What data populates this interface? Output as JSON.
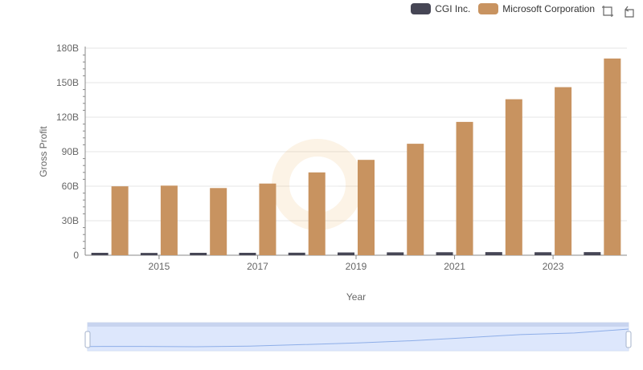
{
  "legend": {
    "items": [
      {
        "label": "CGI Inc.",
        "color": "#464655"
      },
      {
        "label": "Microsoft Corporation",
        "color": "#c89360"
      }
    ]
  },
  "toolbox": {
    "icons": [
      "zoom-icon",
      "restore-icon"
    ]
  },
  "chart_data": {
    "type": "bar",
    "title": "",
    "xlabel": "Year",
    "ylabel": "Gross Profit",
    "categories": [
      "2014",
      "2015",
      "2016",
      "2017",
      "2018",
      "2019",
      "2020",
      "2021",
      "2022",
      "2023",
      "2024"
    ],
    "x_tick_labels": [
      "2015",
      "2017",
      "2019",
      "2021",
      "2023"
    ],
    "y_tick_labels": [
      "0",
      "30B",
      "60B",
      "90B",
      "120B",
      "150B",
      "180B"
    ],
    "ylim": [
      0,
      180
    ],
    "y_unit": "B",
    "grid": true,
    "legend_position": "top-right",
    "series": [
      {
        "name": "CGI Inc.",
        "color": "#464655",
        "values": [
          2.1,
          2.0,
          2.1,
          2.1,
          2.2,
          2.4,
          2.5,
          2.6,
          2.7,
          2.6,
          2.7
        ]
      },
      {
        "name": "Microsoft Corporation",
        "color": "#c89360",
        "values": [
          59.9,
          60.5,
          58.4,
          62.3,
          72.0,
          82.9,
          96.9,
          115.9,
          135.6,
          146.1,
          171.0
        ]
      }
    ]
  },
  "dataZoom": {
    "range_start_pct": 0,
    "range_end_pct": 100,
    "preview_fill": "#d4e1fb",
    "preview_line": "#8eaee8"
  }
}
